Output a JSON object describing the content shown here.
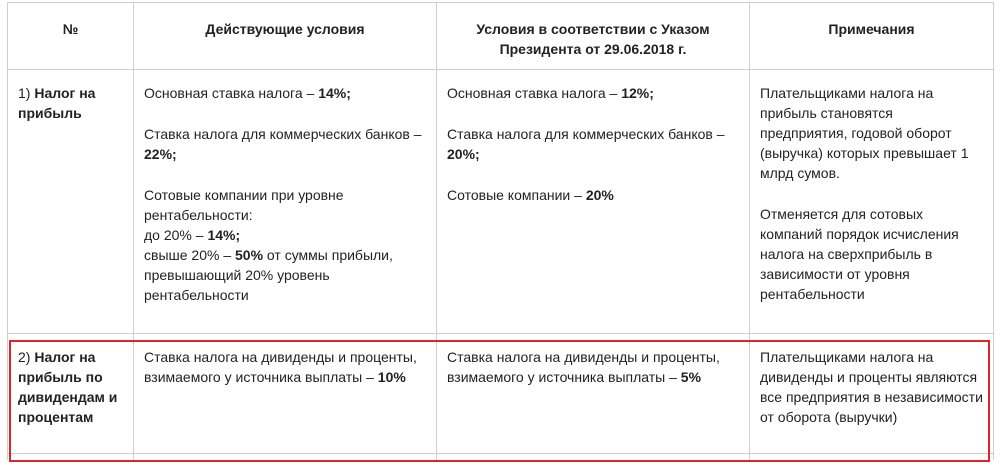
{
  "header": {
    "col_num": "№",
    "col_current": "Действующие условия",
    "col_new_line1": "Условия в соответствии с Указом",
    "col_new_line2": "Президента от 29.06.2018 г.",
    "col_notes": "Примечания"
  },
  "rows": [
    {
      "num_prefix": "1) ",
      "num_bold": "Налог на прибыль",
      "current": {
        "p1_text": "Основная ставка налога – ",
        "p1_bold": "14%;",
        "p2_text": "Ставка налога для коммерческих банков – ",
        "p2_bold": "22%;",
        "p3_line1": "Сотовые компании при уровне рентабельности:",
        "p3_line2_text": "до 20% – ",
        "p3_line2_bold": "14%;",
        "p3_line3_text": "свыше 20% – ",
        "p3_line3_bold": "50%",
        "p3_line3_rest": " от суммы прибыли, превышающий 20% уровень рентабельности"
      },
      "new": {
        "p1_text": "Основная ставка налога – ",
        "p1_bold": "12%;",
        "p2_text": "Ставка налога для коммерческих банков – ",
        "p2_bold": "20%;",
        "p3_text": "Сотовые компании – ",
        "p3_bold": "20%"
      },
      "notes": {
        "p1": "Плательщиками налога на прибыль становятся предприятия, годовой оборот (выручка) которых превышает 1 млрд сумов.",
        "p2": "Отменяется  для сотовых компаний порядок исчисления налога на сверхприбыль в зависимости от уровня рентабельности"
      }
    },
    {
      "num_prefix": "2) ",
      "num_bold": "Налог на прибыль по дивидендам и процентам",
      "current": {
        "text": "Ставка налога на дивиденды и проценты, взимаемого у источника выплаты – ",
        "bold": "10%"
      },
      "new": {
        "text": "Ставка налога на дивиденды и проценты, взимаемого у источника выплаты – ",
        "bold": "5%"
      },
      "notes": {
        "p1": "Плательщиками налога на дивиденды и проценты являются все предприятия  в независимости от оборота (выручки)"
      }
    }
  ],
  "colors": {
    "highlight_border": "#e0242a",
    "grid": "#cfcfcf"
  }
}
